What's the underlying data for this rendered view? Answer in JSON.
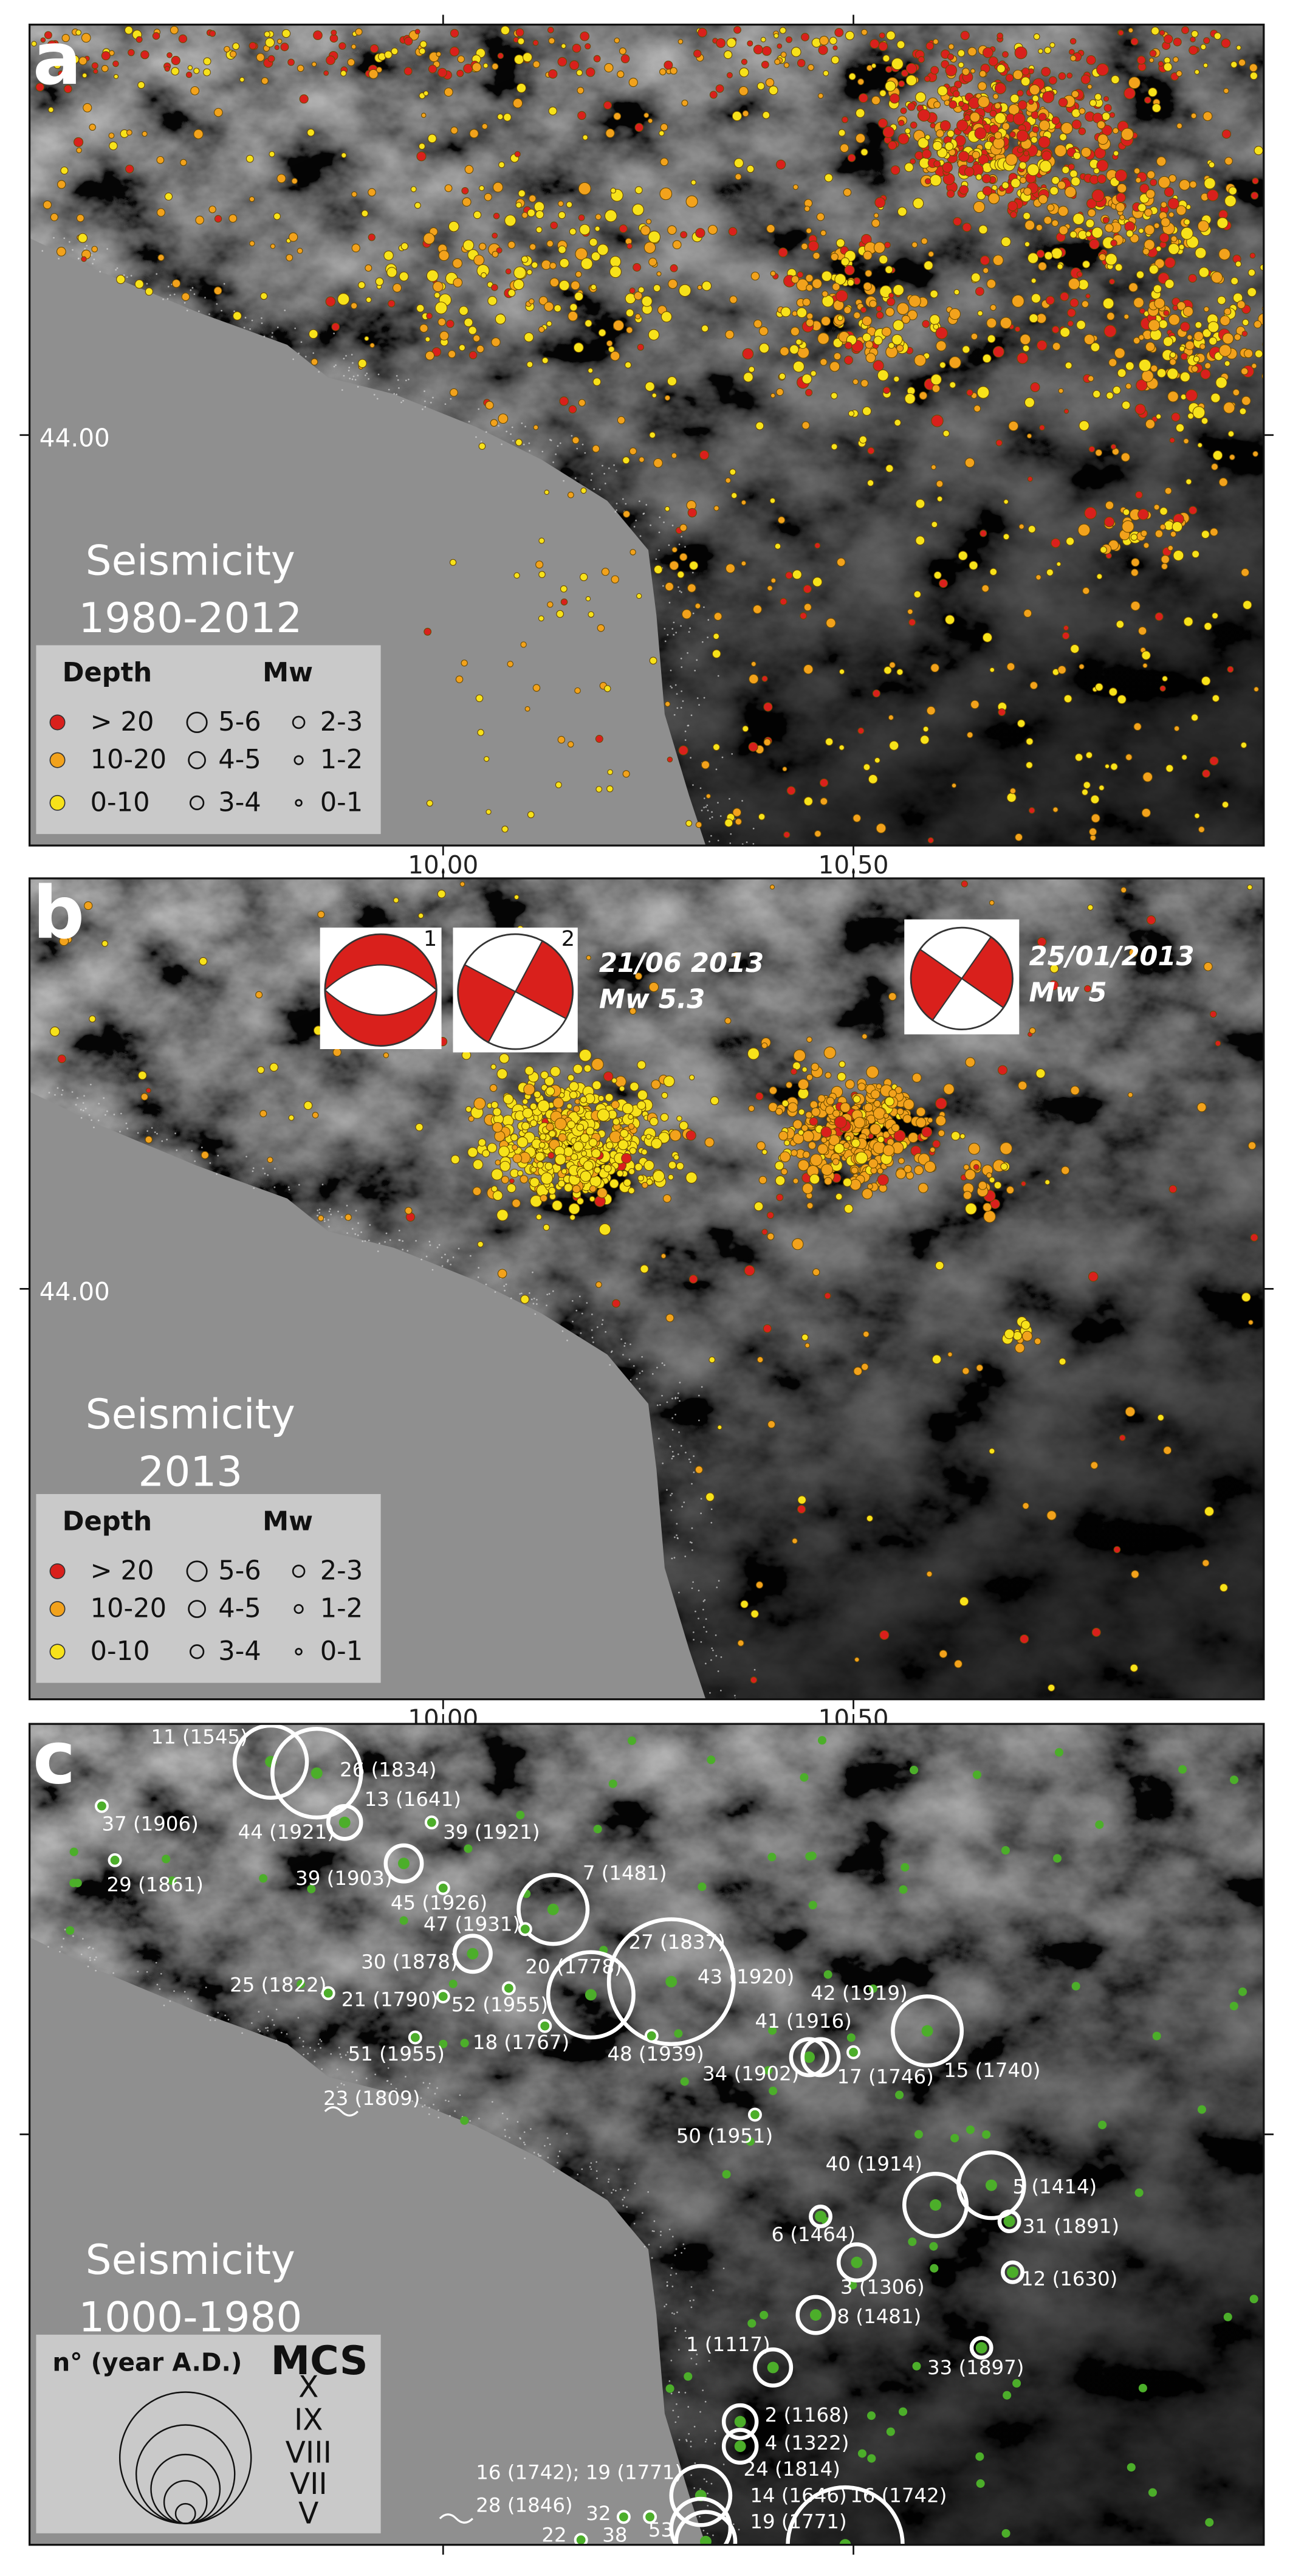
{
  "panels": [
    {
      "letter": "a",
      "title": [
        "Seismicity",
        "1980-2012"
      ],
      "lat_label": "44.00",
      "lon_labels": [
        "10.00",
        "10.50"
      ],
      "legend": {
        "depth_title": "Depth",
        "mw_title": "Mw",
        "depth_classes": [
          "> 20",
          "10-20",
          "0-10"
        ],
        "depth_colors": [
          "#d9201c",
          "#f2a21c",
          "#f7e21a"
        ],
        "mw_classes": [
          "5-6",
          "4-5",
          "3-4",
          "2-3",
          "1-2",
          "0-1"
        ]
      }
    },
    {
      "letter": "b",
      "title": [
        "Seismicity",
        "2013"
      ],
      "lat_label": "44.00",
      "lon_labels": [
        "10.00",
        "10.50"
      ],
      "focal_numbers": [
        "1",
        "2"
      ],
      "annotations": [
        {
          "date": "21/06 2013",
          "magnitude": "Mw 5.3"
        },
        {
          "date": "25/01/2013",
          "magnitude": "Mw 5"
        }
      ],
      "legend": {
        "depth_title": "Depth",
        "mw_title": "Mw",
        "depth_classes": [
          "> 20",
          "10-20",
          "0-10"
        ],
        "depth_colors": [
          "#d9201c",
          "#f2a21c",
          "#f7e21a"
        ],
        "mw_classes": [
          "5-6",
          "4-5",
          "3-4",
          "2-3",
          "1-2",
          "0-1"
        ]
      }
    },
    {
      "letter": "c",
      "title": [
        "Seismicity",
        "1000-1980"
      ],
      "legend": {
        "title": "n° (year A.D.)",
        "scale_title": "MCS",
        "mcs_classes": [
          "X",
          "IX",
          "VIII",
          "VII",
          "V"
        ]
      },
      "events": [
        "11 (1545)",
        "26 (1834)",
        "13 (1641)",
        "37 (1906)",
        "44 (1921)",
        "39 (1921)",
        "29 (1861)",
        "39 (1903)",
        "45 (1926)",
        "7 (1481)",
        "47 (1931)",
        "30 (1878)",
        "27 (1837)",
        "20 (1778)",
        "43 (1920)",
        "25 (1822)",
        "21 (1790)",
        "52 (1955)",
        "42 (1919)",
        "18 (1767)",
        "48 (1939)",
        "41 (1916)",
        "15 (1740)",
        "34 (1902)",
        "17 (1746)",
        "51 (1955)",
        "23 (1809)",
        "50 (1951)",
        "40 (1914)",
        "5 (1414)",
        "31 (1891)",
        "6 (1464)",
        "12 (1630)",
        "3 (1306)",
        "8 (1481)",
        "1 (1117)",
        "33 (1897)",
        "2 (1168)",
        "4 (1322)",
        "24 (1814)",
        "16 (1742); 19 (1771)",
        "14 (1646)",
        "16 (1742)",
        "28 (1846)",
        "32",
        "38",
        "53",
        "19 (1771)",
        "22"
      ]
    }
  ]
}
